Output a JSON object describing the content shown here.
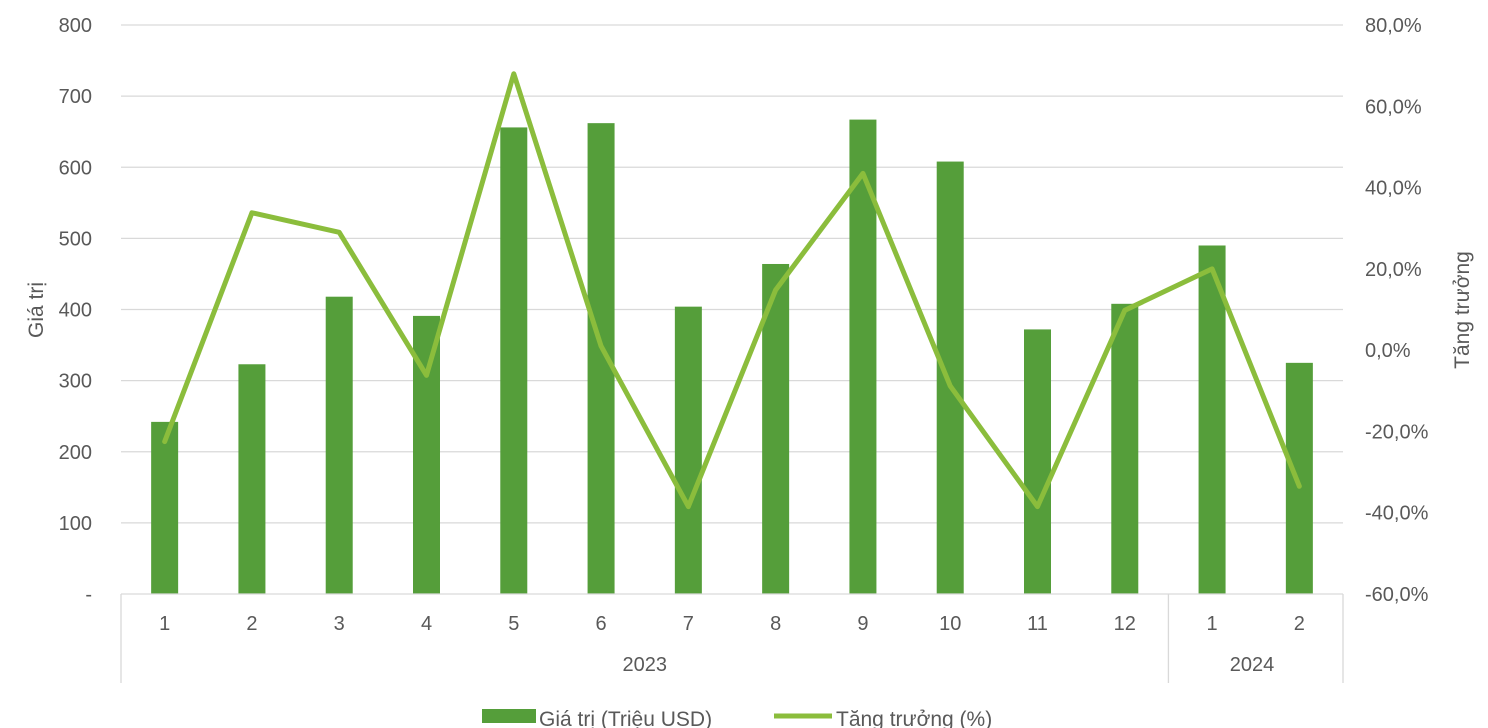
{
  "chart_data": {
    "type": "bar",
    "categories": [
      "1",
      "2",
      "3",
      "4",
      "5",
      "6",
      "7",
      "8",
      "9",
      "10",
      "11",
      "12",
      "1",
      "2"
    ],
    "groups": [
      {
        "label": "2023",
        "count": 12
      },
      {
        "label": "2024",
        "count": 2
      }
    ],
    "series": [
      {
        "name": "Giá trị (Triệu USD)",
        "type": "bar",
        "axis": "left",
        "color": "#559e3a",
        "values": [
          242,
          323,
          418,
          391,
          656,
          662,
          404,
          464,
          667,
          608,
          372,
          408,
          490,
          325
        ]
      },
      {
        "name": "Tăng trưởng (%)",
        "type": "line",
        "axis": "right",
        "color": "#8bbd3c",
        "values": [
          -22.5,
          33.8,
          29.0,
          -6.2,
          68.0,
          1.0,
          -38.5,
          14.8,
          43.5,
          -8.8,
          -38.5,
          9.8,
          20.0,
          -33.5
        ]
      }
    ],
    "ylabel": "Giá trị",
    "y2label": "Tăng trưởng",
    "ylim": [
      0,
      800
    ],
    "y2lim": [
      -60,
      80
    ],
    "yticks": [
      "-",
      "100",
      "200",
      "300",
      "400",
      "500",
      "600",
      "700",
      "800"
    ],
    "y2ticks": [
      "-60,0%",
      "-40,0%",
      "-20,0%",
      "0,0%",
      "20,0%",
      "40,0%",
      "60,0%",
      "80,0%"
    ],
    "grid": true,
    "legend": "bottom"
  }
}
